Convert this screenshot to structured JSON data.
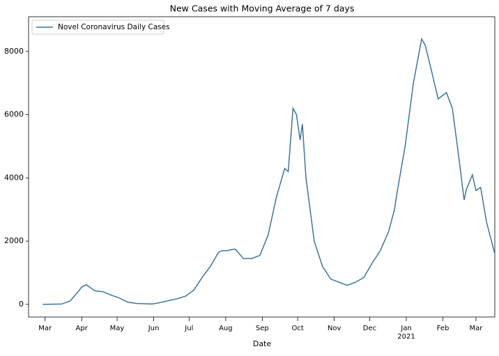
{
  "chart_data": {
    "type": "line",
    "title": "New Cases with Moving Average of 7 days",
    "x_label": "Date",
    "x": [
      -2,
      14,
      21,
      28,
      31,
      35,
      42,
      49,
      56,
      63,
      70,
      77,
      84,
      91,
      98,
      105,
      112,
      119,
      126,
      133,
      140,
      147,
      150,
      154,
      161,
      168,
      175,
      182,
      189,
      196,
      203,
      206,
      208,
      210,
      213,
      216,
      218,
      221,
      228,
      235,
      242,
      249,
      256,
      263,
      270,
      277,
      284,
      291,
      296,
      298,
      305,
      312,
      319,
      322,
      326,
      333,
      340,
      345,
      350,
      355,
      357,
      362,
      365,
      369,
      374,
      381
    ],
    "series": [
      {
        "name": "Novel Coronavirus Daily Cases",
        "color": "#3b75a0",
        "values": [
          0,
          10,
          100,
          400,
          550,
          620,
          430,
          400,
          290,
          200,
          70,
          30,
          20,
          10,
          60,
          120,
          180,
          260,
          450,
          850,
          1200,
          1650,
          1700,
          1700,
          1750,
          1450,
          1450,
          1550,
          2200,
          3400,
          4300,
          4200,
          5200,
          6200,
          6000,
          5200,
          5700,
          4000,
          2000,
          1200,
          800,
          700,
          600,
          700,
          850,
          1300,
          1700,
          2300,
          3000,
          3500,
          5000,
          7000,
          8400,
          8200,
          7600,
          6500,
          6700,
          6200,
          4800,
          3300,
          3650,
          4100,
          3600,
          3700,
          2600,
          1600
        ]
      }
    ],
    "xlim": [
      -14,
      381
    ],
    "ylim": [
      -400,
      9100
    ],
    "xticks": [
      {
        "value": 0,
        "label": "Mar"
      },
      {
        "value": 31,
        "label": "Apr"
      },
      {
        "value": 61,
        "label": "May"
      },
      {
        "value": 92,
        "label": "Jun"
      },
      {
        "value": 122,
        "label": "Jul"
      },
      {
        "value": 153,
        "label": "Aug"
      },
      {
        "value": 184,
        "label": "Sep"
      },
      {
        "value": 214,
        "label": "Oct"
      },
      {
        "value": 245,
        "label": "Nov"
      },
      {
        "value": 275,
        "label": "Dec"
      },
      {
        "value": 306,
        "label": "Jan"
      },
      {
        "value": 337,
        "label": "Feb"
      },
      {
        "value": 365,
        "label": "Mar"
      }
    ],
    "year_tick": {
      "value": 306,
      "label": "2021"
    },
    "yticks": [
      0,
      2000,
      4000,
      6000,
      8000
    ],
    "grid": false,
    "legend": "upper left"
  }
}
